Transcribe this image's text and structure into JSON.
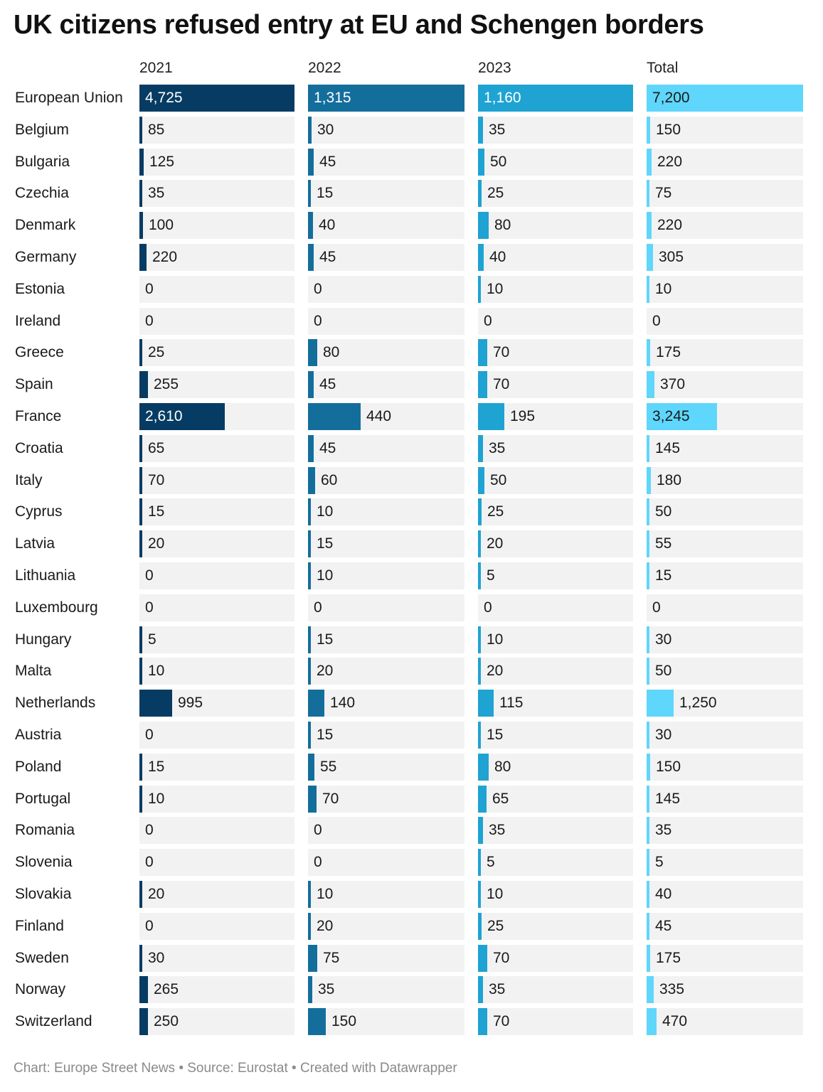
{
  "title": "UK citizens refused entry at EU and Schengen borders",
  "footer": "Chart: Europe Street News • Source: Eurostat • Created with Datawrapper",
  "chart_data": {
    "type": "table",
    "title": "UK citizens refused entry at EU and Schengen borders",
    "columns": [
      {
        "name": "2021",
        "color": "#063c63"
      },
      {
        "name": "2022",
        "color": "#146e9c"
      },
      {
        "name": "2023",
        "color": "#1ea3d2"
      },
      {
        "name": "Total",
        "color": "#5fd6fb"
      }
    ],
    "rows": [
      {
        "label": "European Union",
        "values": [
          4725,
          1315,
          1160,
          7200
        ],
        "display": [
          "4,725",
          "1,315",
          "1,160",
          "7,200"
        ]
      },
      {
        "label": "Belgium",
        "values": [
          85,
          30,
          35,
          150
        ],
        "display": [
          "85",
          "30",
          "35",
          "150"
        ]
      },
      {
        "label": "Bulgaria",
        "values": [
          125,
          45,
          50,
          220
        ],
        "display": [
          "125",
          "45",
          "50",
          "220"
        ]
      },
      {
        "label": "Czechia",
        "values": [
          35,
          15,
          25,
          75
        ],
        "display": [
          "35",
          "15",
          "25",
          "75"
        ]
      },
      {
        "label": "Denmark",
        "values": [
          100,
          40,
          80,
          220
        ],
        "display": [
          "100",
          "40",
          "80",
          "220"
        ]
      },
      {
        "label": "Germany",
        "values": [
          220,
          45,
          40,
          305
        ],
        "display": [
          "220",
          "45",
          "40",
          "305"
        ]
      },
      {
        "label": "Estonia",
        "values": [
          0,
          0,
          10,
          10
        ],
        "display": [
          "0",
          "0",
          "10",
          "10"
        ]
      },
      {
        "label": "Ireland",
        "values": [
          0,
          0,
          0,
          0
        ],
        "display": [
          "0",
          "0",
          "0",
          "0"
        ]
      },
      {
        "label": "Greece",
        "values": [
          25,
          80,
          70,
          175
        ],
        "display": [
          "25",
          "80",
          "70",
          "175"
        ]
      },
      {
        "label": "Spain",
        "values": [
          255,
          45,
          70,
          370
        ],
        "display": [
          "255",
          "45",
          "70",
          "370"
        ]
      },
      {
        "label": "France",
        "values": [
          2610,
          440,
          195,
          3245
        ],
        "display": [
          "2,610",
          "440",
          "195",
          "3,245"
        ]
      },
      {
        "label": "Croatia",
        "values": [
          65,
          45,
          35,
          145
        ],
        "display": [
          "65",
          "45",
          "35",
          "145"
        ]
      },
      {
        "label": "Italy",
        "values": [
          70,
          60,
          50,
          180
        ],
        "display": [
          "70",
          "60",
          "50",
          "180"
        ]
      },
      {
        "label": "Cyprus",
        "values": [
          15,
          10,
          25,
          50
        ],
        "display": [
          "15",
          "10",
          "25",
          "50"
        ]
      },
      {
        "label": "Latvia",
        "values": [
          20,
          15,
          20,
          55
        ],
        "display": [
          "20",
          "15",
          "20",
          "55"
        ]
      },
      {
        "label": "Lithuania",
        "values": [
          0,
          10,
          5,
          15
        ],
        "display": [
          "0",
          "10",
          "5",
          "15"
        ]
      },
      {
        "label": "Luxembourg",
        "values": [
          0,
          0,
          0,
          0
        ],
        "display": [
          "0",
          "0",
          "0",
          "0"
        ]
      },
      {
        "label": "Hungary",
        "values": [
          5,
          15,
          10,
          30
        ],
        "display": [
          "5",
          "15",
          "10",
          "30"
        ]
      },
      {
        "label": "Malta",
        "values": [
          10,
          20,
          20,
          50
        ],
        "display": [
          "10",
          "20",
          "20",
          "50"
        ]
      },
      {
        "label": "Netherlands",
        "values": [
          995,
          140,
          115,
          1250
        ],
        "display": [
          "995",
          "140",
          "115",
          "1,250"
        ]
      },
      {
        "label": "Austria",
        "values": [
          0,
          15,
          15,
          30
        ],
        "display": [
          "0",
          "15",
          "15",
          "30"
        ]
      },
      {
        "label": "Poland",
        "values": [
          15,
          55,
          80,
          150
        ],
        "display": [
          "15",
          "55",
          "80",
          "150"
        ]
      },
      {
        "label": "Portugal",
        "values": [
          10,
          70,
          65,
          145
        ],
        "display": [
          "10",
          "70",
          "65",
          "145"
        ]
      },
      {
        "label": "Romania",
        "values": [
          0,
          0,
          35,
          35
        ],
        "display": [
          "0",
          "0",
          "35",
          "35"
        ]
      },
      {
        "label": "Slovenia",
        "values": [
          0,
          0,
          5,
          5
        ],
        "display": [
          "0",
          "0",
          "5",
          "5"
        ]
      },
      {
        "label": "Slovakia",
        "values": [
          20,
          10,
          10,
          40
        ],
        "display": [
          "20",
          "10",
          "10",
          "40"
        ]
      },
      {
        "label": "Finland",
        "values": [
          0,
          20,
          25,
          45
        ],
        "display": [
          "0",
          "20",
          "25",
          "45"
        ]
      },
      {
        "label": "Sweden",
        "values": [
          30,
          75,
          70,
          175
        ],
        "display": [
          "30",
          "75",
          "70",
          "175"
        ]
      },
      {
        "label": "Norway",
        "values": [
          265,
          35,
          35,
          335
        ],
        "display": [
          "265",
          "35",
          "35",
          "335"
        ]
      },
      {
        "label": "Switzerland",
        "values": [
          250,
          150,
          70,
          470
        ],
        "display": [
          "250",
          "150",
          "70",
          "470"
        ]
      }
    ]
  }
}
